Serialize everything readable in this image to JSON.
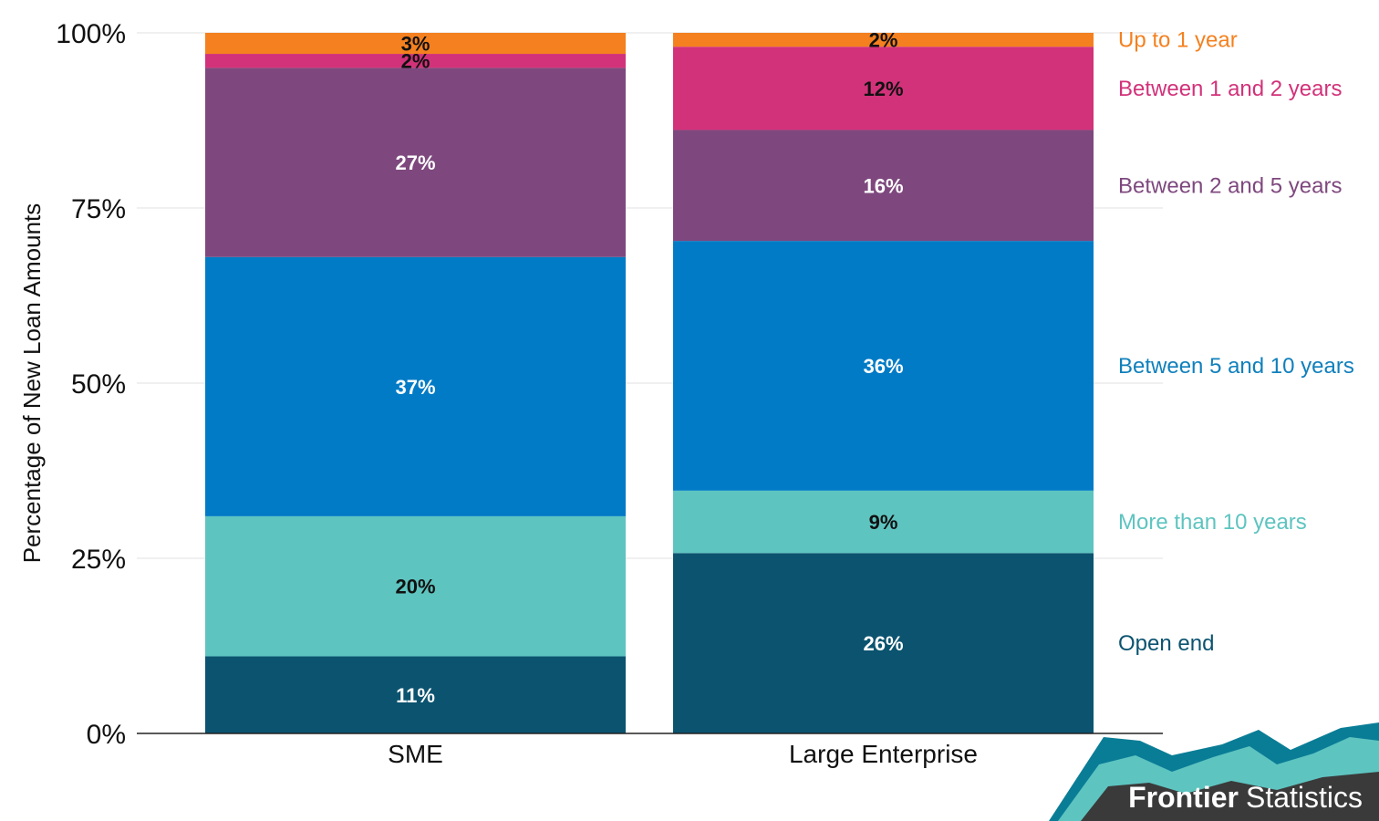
{
  "chart_data": {
    "type": "bar",
    "stacked": true,
    "normalized": true,
    "categories": [
      "SME",
      "Large Enterprise"
    ],
    "series": [
      {
        "name": "Open end",
        "values": [
          11,
          26
        ],
        "labels": [
          "11%",
          "26%"
        ],
        "color": "#0b536f",
        "label_color": "#ffffff"
      },
      {
        "name": "More than 10 years",
        "values": [
          20,
          9
        ],
        "labels": [
          "20%",
          "9%"
        ],
        "color": "#5ec4c0",
        "label_color": "#111111"
      },
      {
        "name": "Between 5 and 10 years",
        "values": [
          37,
          36
        ],
        "labels": [
          "37%",
          "36%"
        ],
        "color": "#027bc6",
        "label_color": "#ffffff"
      },
      {
        "name": "Between 2 and 5 years",
        "values": [
          27,
          16
        ],
        "labels": [
          "27%",
          "16%"
        ],
        "color": "#7e487e",
        "label_color": "#ffffff"
      },
      {
        "name": "Between 1 and 2 years",
        "values": [
          2,
          12
        ],
        "labels": [
          "2%",
          "12%"
        ],
        "color": "#d2327a",
        "label_color": "#111111"
      },
      {
        "name": "Up to 1 year",
        "values": [
          3,
          2
        ],
        "labels": [
          "3%",
          "2%"
        ],
        "color": "#f4801f",
        "label_color": "#111111"
      }
    ],
    "legend_colors": {
      "Open end": "#0b536f",
      "More than 10 years": "#5ec4c0",
      "Between 5 and 10 years": "#1080bc",
      "Between 2 and 5 years": "#7e487e",
      "Between 1 and 2 years": "#d2327a",
      "Up to 1 year": "#f4801f"
    },
    "ylabel": "Percentage of New Loan Amounts",
    "xlabel": "",
    "ylim": [
      0,
      100
    ],
    "yticks": [
      0,
      25,
      50,
      75,
      100
    ],
    "ytick_labels": [
      "0%",
      "25%",
      "50%",
      "75%",
      "100%"
    ],
    "grid": true,
    "legend_placement": "right, inline with segments"
  },
  "brand": {
    "name_bold": "Frontier",
    "name_light": "Statistics",
    "colors": [
      "#0a7d96",
      "#5ec4c0",
      "#3a3a3a"
    ]
  }
}
